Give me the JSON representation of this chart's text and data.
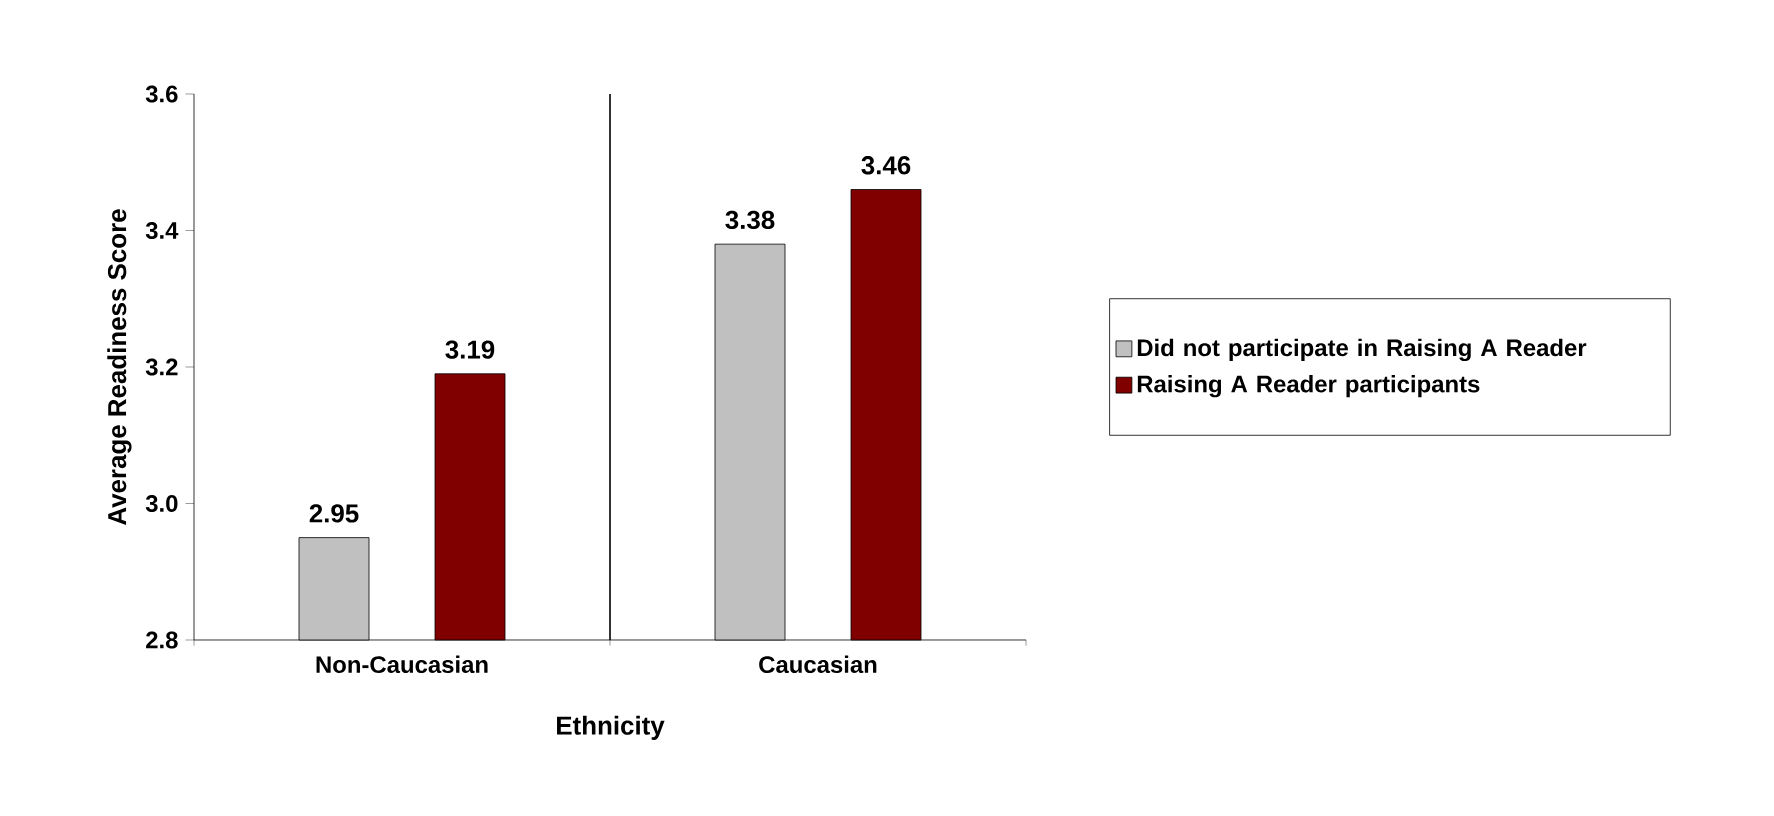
{
  "chart_data": {
    "type": "bar",
    "xlabel": "Ethnicity",
    "ylabel": "Average Readiness Score",
    "categories": [
      "Non-Caucasian",
      "Caucasian"
    ],
    "series": [
      {
        "name": "Did not participate in Raising A Reader",
        "color": "#c0c0c0",
        "values": [
          2.95,
          3.38
        ]
      },
      {
        "name": "Raising A Reader participants",
        "color": "#800000",
        "values": [
          3.19,
          3.46
        ]
      }
    ],
    "ylim": [
      2.8,
      3.6
    ],
    "yticks": [
      2.8,
      {
        "value": 3.0,
        "label": "3.0"
      },
      3.2,
      3.4,
      3.6
    ],
    "data_labels": true,
    "legend": "right"
  }
}
